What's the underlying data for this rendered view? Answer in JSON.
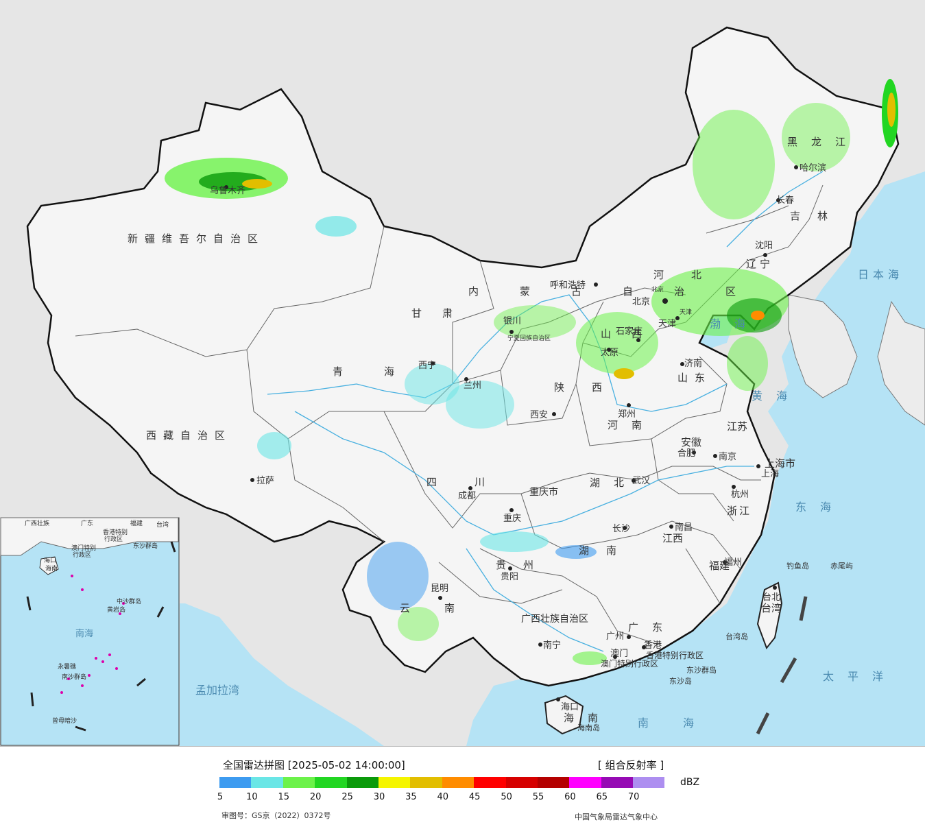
{
  "title": "全国雷达拼图 [2025-05-02 14:00:00]",
  "product": "[ 组合反射率 ]",
  "unit": "dBZ",
  "legend": {
    "colors": [
      "#3d9bf0",
      "#6ae6e6",
      "#6cf24a",
      "#22d622",
      "#0a9a0a",
      "#f5f500",
      "#e2be00",
      "#ff8c00",
      "#ff0000",
      "#d60000",
      "#b40000",
      "#ff00ff",
      "#960ab4",
      "#ad8ef0"
    ],
    "ticks": [
      "5",
      "10",
      "15",
      "20",
      "25",
      "30",
      "35",
      "40",
      "45",
      "50",
      "55",
      "60",
      "65",
      "70"
    ]
  },
  "approval_no": "审图号：GS京（2022）0372号",
  "source": "中国气象局雷达气象中心",
  "provinces": [
    "新疆维吾尔自治区",
    "西藏自治区",
    "青海",
    "甘肃",
    "内蒙古自治区",
    "四川",
    "云南",
    "黑龙江",
    "吉林",
    "辽宁",
    "河北",
    "山西",
    "陕西",
    "河南",
    "山东",
    "江苏",
    "安徽",
    "湖北",
    "湖南",
    "江西",
    "浙江",
    "福建",
    "广东",
    "广西壮族自治区",
    "贵州",
    "重庆市",
    "上海市",
    "海南",
    "台湾",
    "宁夏回族自治区",
    "天津",
    "北京",
    "香港特别行政区",
    "澳门特别行政区"
  ],
  "cities": [
    "乌鲁木齐",
    "拉萨",
    "西宁",
    "兰州",
    "银川",
    "呼和浩特",
    "北京",
    "天津",
    "石家庄",
    "太原",
    "济南",
    "郑州",
    "西安",
    "合肥",
    "南京",
    "上海",
    "杭州",
    "武汉",
    "成都",
    "重庆",
    "长沙",
    "南昌",
    "福州",
    "台北",
    "贵阳",
    "昆明",
    "南宁",
    "广州",
    "香港",
    "澳门",
    "海口",
    "哈尔滨",
    "长春",
    "沈阳"
  ],
  "seas": [
    "渤海",
    "黄海",
    "东海",
    "南海",
    "日本海",
    "太平洋",
    "孟加拉湾"
  ],
  "islands": [
    "钓鱼岛",
    "赤尾屿",
    "台湾岛",
    "东沙群岛",
    "东沙岛",
    "海南岛"
  ],
  "inset": {
    "labels": [
      "广西壮族",
      "广东",
      "福建",
      "台湾",
      "香港特别",
      "行政区",
      "澳门特别",
      "行政区",
      "东沙群岛",
      "海口",
      "海南",
      "中沙群岛",
      "黄岩岛",
      "南海",
      "永暑礁",
      "南沙群岛",
      "曾母暗沙"
    ]
  }
}
